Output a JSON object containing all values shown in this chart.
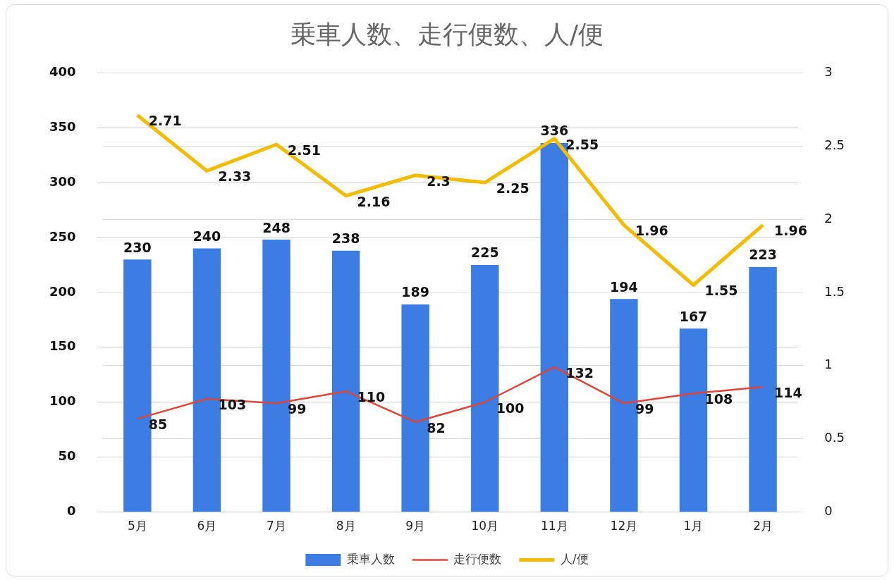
{
  "chart_data": {
    "type": "bar",
    "title": "乗車人数、走行便数、人/便",
    "categories": [
      "5月",
      "6月",
      "7月",
      "8月",
      "9月",
      "10月",
      "11月",
      "12月",
      "1月",
      "2月"
    ],
    "series": [
      {
        "name": "乗車人数",
        "color": "#3b7de3",
        "values": [
          230,
          240,
          248,
          238,
          189,
          225,
          336,
          194,
          167,
          223
        ]
      },
      {
        "name": "走行便数",
        "type": "line",
        "color": "#e0453a",
        "values": [
          85,
          103,
          99,
          110,
          82,
          100,
          132,
          99,
          108,
          114
        ]
      },
      {
        "name": "人/便",
        "type": "line",
        "axis": "y2",
        "color": "#f2bc00",
        "values": [
          2.71,
          2.33,
          2.51,
          2.16,
          2.3,
          2.25,
          2.55,
          1.96,
          1.55,
          1.96
        ]
      }
    ],
    "ylim": [
      0,
      400
    ],
    "yticks": [
      0,
      50,
      100,
      150,
      200,
      250,
      300,
      350,
      400
    ],
    "y2lim": [
      0,
      3
    ],
    "y2ticks": [
      0,
      0.5,
      1,
      1.5,
      2,
      2.5,
      3
    ],
    "grid": "y",
    "legend": "bottom",
    "data_labels": true,
    "marker": "none",
    "line_style": "solid"
  }
}
